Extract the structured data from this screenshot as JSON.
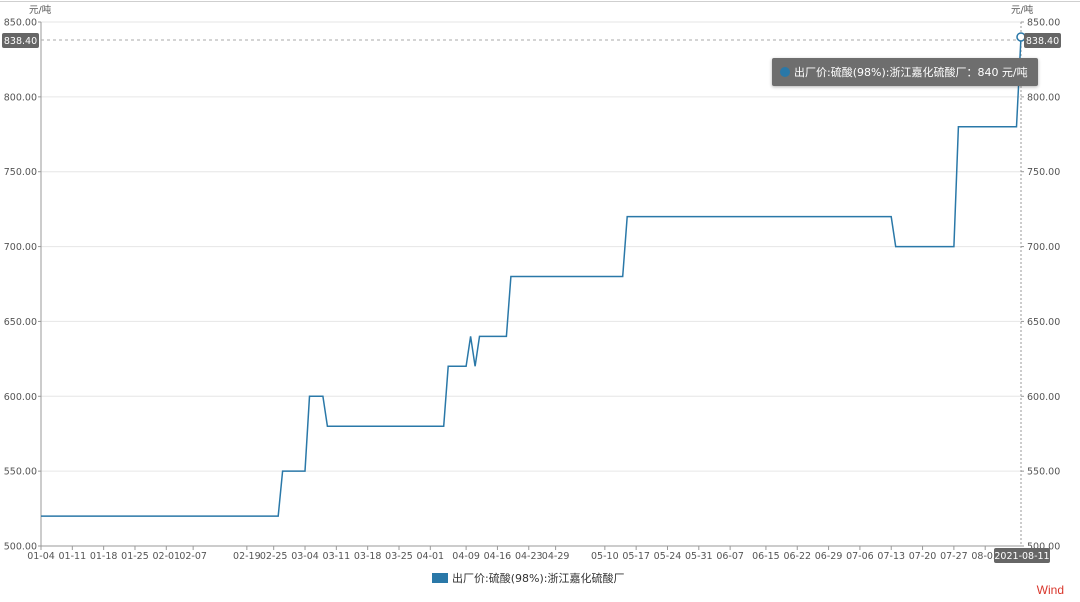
{
  "chart_data": {
    "type": "line",
    "unit_left": "元/吨",
    "unit_right": "元/吨",
    "ylim": [
      500,
      850
    ],
    "yticks": [
      "500.00",
      "550.00",
      "600.00",
      "650.00",
      "700.00",
      "750.00",
      "800.00",
      "850.00"
    ],
    "xlim": [
      "2021-01-04",
      "2021-08-11"
    ],
    "xticks": [
      {
        "date": "2021-01-04",
        "label": "01-04"
      },
      {
        "date": "2021-01-11",
        "label": "01-11"
      },
      {
        "date": "2021-01-18",
        "label": "01-18"
      },
      {
        "date": "2021-01-25",
        "label": "01-25"
      },
      {
        "date": "2021-02-01",
        "label": "02-01"
      },
      {
        "date": "2021-02-07",
        "label": "02-07"
      },
      {
        "date": "2021-02-19",
        "label": "02-19"
      },
      {
        "date": "2021-02-25",
        "label": "02-25"
      },
      {
        "date": "2021-03-04",
        "label": "03-04"
      },
      {
        "date": "2021-03-11",
        "label": "03-11"
      },
      {
        "date": "2021-03-18",
        "label": "03-18"
      },
      {
        "date": "2021-03-25",
        "label": "03-25"
      },
      {
        "date": "2021-04-01",
        "label": "04-01"
      },
      {
        "date": "2021-04-09",
        "label": "04-09"
      },
      {
        "date": "2021-04-16",
        "label": "04-16"
      },
      {
        "date": "2021-04-23",
        "label": "04-23"
      },
      {
        "date": "2021-04-29",
        "label": "04-29"
      },
      {
        "date": "2021-05-10",
        "label": "05-10"
      },
      {
        "date": "2021-05-17",
        "label": "05-17"
      },
      {
        "date": "2021-05-24",
        "label": "05-24"
      },
      {
        "date": "2021-05-31",
        "label": "05-31"
      },
      {
        "date": "2021-06-07",
        "label": "06-07"
      },
      {
        "date": "2021-06-15",
        "label": "06-15"
      },
      {
        "date": "2021-06-22",
        "label": "06-22"
      },
      {
        "date": "2021-06-29",
        "label": "06-29"
      },
      {
        "date": "2021-07-06",
        "label": "07-06"
      },
      {
        "date": "2021-07-13",
        "label": "07-13"
      },
      {
        "date": "2021-07-20",
        "label": "07-20"
      },
      {
        "date": "2021-07-27",
        "label": "07-27"
      },
      {
        "date": "2021-08-03",
        "label": "08-03"
      }
    ],
    "cursor_date_label": "2021-08-11",
    "cursor_value_label": "838.40",
    "series": [
      {
        "name": "出厂价:硫酸(98%):浙江嘉化硫酸厂",
        "color": "#2a78a8",
        "points": [
          [
            "2021-01-04",
            520
          ],
          [
            "2021-02-26",
            520
          ],
          [
            "2021-02-27",
            550
          ],
          [
            "2021-03-04",
            550
          ],
          [
            "2021-03-05",
            600
          ],
          [
            "2021-03-08",
            600
          ],
          [
            "2021-03-09",
            580
          ],
          [
            "2021-04-04",
            580
          ],
          [
            "2021-04-05",
            620
          ],
          [
            "2021-04-09",
            620
          ],
          [
            "2021-04-10",
            640
          ],
          [
            "2021-04-11",
            620
          ],
          [
            "2021-04-12",
            640
          ],
          [
            "2021-04-18",
            640
          ],
          [
            "2021-04-19",
            680
          ],
          [
            "2021-05-14",
            680
          ],
          [
            "2021-05-15",
            720
          ],
          [
            "2021-07-13",
            720
          ],
          [
            "2021-07-14",
            700
          ],
          [
            "2021-07-27",
            700
          ],
          [
            "2021-07-28",
            780
          ],
          [
            "2021-08-10",
            780
          ],
          [
            "2021-08-11",
            840
          ]
        ]
      }
    ]
  },
  "tooltip": {
    "text": "出厂价:硫酸(98%):浙江嘉化硫酸厂：840 元/吨"
  },
  "legend": {
    "label": "出厂价:硫酸(98%):浙江嘉化硫酸厂"
  },
  "brand": "Wind"
}
